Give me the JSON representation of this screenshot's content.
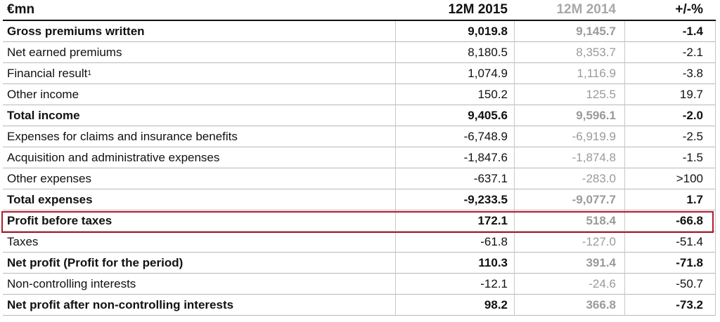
{
  "table": {
    "header": {
      "unit": "€mn",
      "col1": "12M 2015",
      "col2": "12M 2014",
      "col3": "+/-%"
    },
    "rows": [
      {
        "label": "Gross premiums written",
        "v1": "9,019.8",
        "v2": "9,145.7",
        "v3": "-1.4",
        "bold": true
      },
      {
        "label": "Net earned premiums",
        "v1": "8,180.5",
        "v2": "8,353.7",
        "v3": "-2.1",
        "bold": false
      },
      {
        "label": "Financial result",
        "sup": "1",
        "v1": "1,074.9",
        "v2": "1,116.9",
        "v3": "-3.8",
        "bold": false
      },
      {
        "label": "Other income",
        "v1": "150.2",
        "v2": "125.5",
        "v3": "19.7",
        "bold": false
      },
      {
        "label": "Total income",
        "v1": "9,405.6",
        "v2": "9,596.1",
        "v3": "-2.0",
        "bold": true
      },
      {
        "label": "Expenses for claims and insurance benefits",
        "v1": "-6,748.9",
        "v2": "-6,919.9",
        "v3": "-2.5",
        "bold": false
      },
      {
        "label": "Acquisition and administrative expenses",
        "v1": "-1,847.6",
        "v2": "-1,874.8",
        "v3": "-1.5",
        "bold": false
      },
      {
        "label": "Other expenses",
        "v1": "-637.1",
        "v2": "-283.0",
        "v3": ">100",
        "bold": false
      },
      {
        "label": "Total expenses",
        "v1": "-9,233.5",
        "v2": "-9,077.7",
        "v3": "1.7",
        "bold": true
      },
      {
        "label": "Profit before taxes",
        "v1": "172.1",
        "v2": "518.4",
        "v3": "-66.8",
        "bold": true
      },
      {
        "label": "Taxes",
        "v1": "-61.8",
        "v2": "-127.0",
        "v3": "-51.4",
        "bold": false
      },
      {
        "label": "Net profit (Profit for the period)",
        "v1": "110.3",
        "v2": "391.4",
        "v3": "-71.8",
        "bold": true
      },
      {
        "label": "Non-controlling interests",
        "v1": "-12.1",
        "v2": "-24.6",
        "v3": "-50.7",
        "bold": false
      },
      {
        "label": "Net profit after non-controlling interests",
        "v1": "98.2",
        "v2": "366.8",
        "v3": "-73.2",
        "bold": true
      }
    ]
  },
  "highlight_color": "#b01c2e"
}
